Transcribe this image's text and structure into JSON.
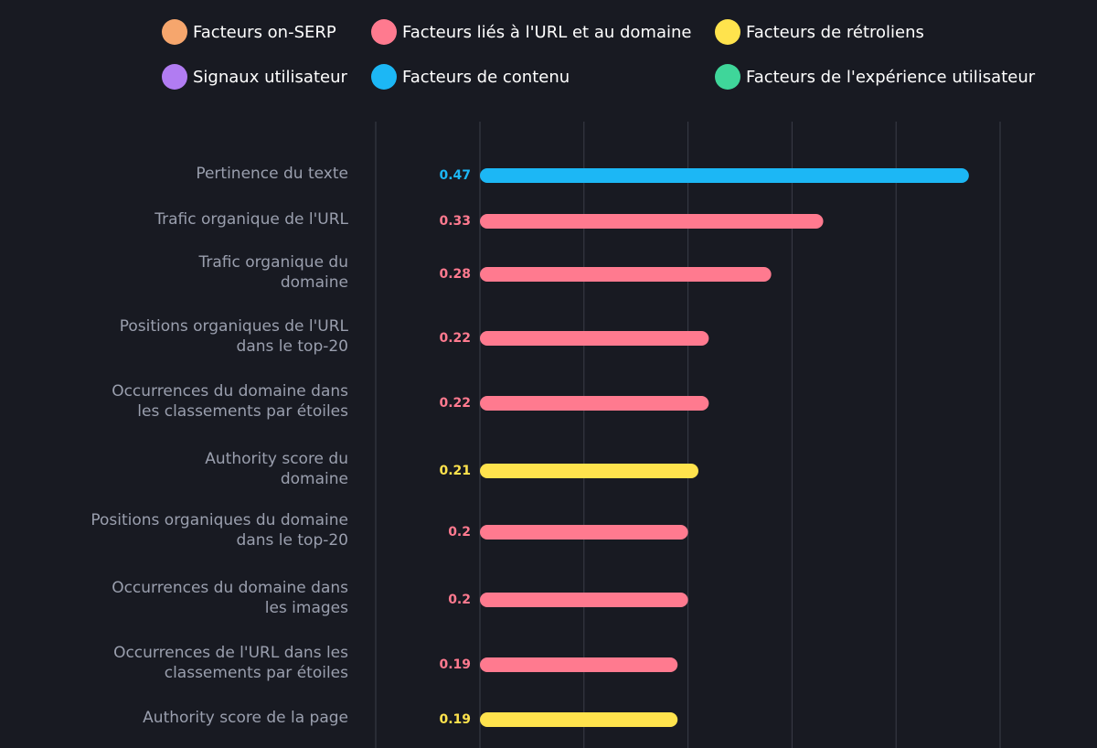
{
  "legend": [
    {
      "label": "Facteurs on-SERP",
      "color": "#f6a66d",
      "icon": "circle"
    },
    {
      "label": "Facteurs liés à l'URL et au domaine",
      "color": "#ff7a8f",
      "icon": "circle"
    },
    {
      "label": "Facteurs de rétroliens",
      "color": "#ffe34d",
      "icon": "circle"
    },
    {
      "label": "Signaux utilisateur",
      "color": "#b17cf2",
      "icon": "circle"
    },
    {
      "label": "Facteurs de contenu",
      "color": "#1cb7f5",
      "icon": "circle"
    },
    {
      "label": "Facteurs de l'expérience utilisateur",
      "color": "#3fd69a",
      "icon": "circle"
    }
  ],
  "chart_data": {
    "type": "bar",
    "orientation": "horizontal",
    "grid": true,
    "xlim": [
      0,
      0.5
    ],
    "categories": [
      "Pertinence du texte",
      "Trafic organique de l'URL",
      "Trafic organique du domaine",
      "Positions organiques de l'URL dans le top-20",
      "Occurrences du domaine dans les classements par étoiles",
      "Authority score du domaine",
      "Positions organiques du domaine dans le top-20",
      "Occurrences du domaine dans les images",
      "Occurrences de l'URL dans les classements par étoiles",
      "Authority score de la page"
    ],
    "category_lines": [
      [
        "Pertinence du texte"
      ],
      [
        "Trafic organique de l'URL"
      ],
      [
        "Trafic organique du",
        "domaine"
      ],
      [
        "Positions organiques de l'URL",
        "dans le top-20"
      ],
      [
        "Occurrences du domaine dans",
        "les classements par étoiles"
      ],
      [
        "Authority score du",
        "domaine"
      ],
      [
        "Positions organiques du domaine",
        "dans le top-20"
      ],
      [
        "Occurrences du domaine dans",
        "les images"
      ],
      [
        "Occurrences de l'URL dans les",
        "classements par étoiles"
      ],
      [
        "Authority score de la page"
      ]
    ],
    "values": [
      0.47,
      0.33,
      0.28,
      0.22,
      0.22,
      0.21,
      0.2,
      0.2,
      0.19,
      0.19
    ],
    "value_labels": [
      "0.47",
      "0.33",
      "0.28",
      "0.22",
      "0.22",
      "0.21",
      "0.2",
      "0.2",
      "0.19",
      "0.19"
    ],
    "series_group": [
      "Facteurs de contenu",
      "Facteurs liés à l'URL et au domaine",
      "Facteurs liés à l'URL et au domaine",
      "Facteurs liés à l'URL et au domaine",
      "Facteurs liés à l'URL et au domaine",
      "Facteurs de rétroliens",
      "Facteurs liés à l'URL et au domaine",
      "Facteurs liés à l'URL et au domaine",
      "Facteurs liés à l'URL et au domaine",
      "Facteurs de rétroliens"
    ],
    "colors": [
      "#1cb7f5",
      "#ff7a8f",
      "#ff7a8f",
      "#ff7a8f",
      "#ff7a8f",
      "#ffe34d",
      "#ff7a8f",
      "#ff7a8f",
      "#ff7a8f",
      "#ffe34d"
    ]
  }
}
